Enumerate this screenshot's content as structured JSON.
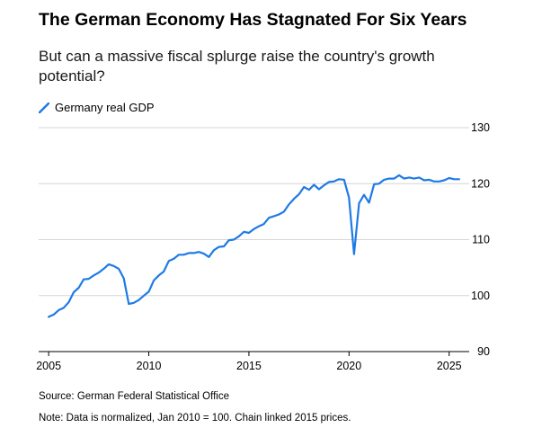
{
  "chart_data": {
    "type": "line",
    "title": "The German Economy Has Stagnated For Six Years",
    "subtitle": "But can a massive fiscal splurge raise the country's growth potential?",
    "xlabel": "",
    "ylabel": "",
    "legend": {
      "position": "top-left"
    },
    "grid": true,
    "xlim": [
      2004.5,
      2026.0
    ],
    "ylim": [
      90,
      130
    ],
    "x_ticks": [
      2005,
      2010,
      2015,
      2020,
      2025
    ],
    "y_ticks": [
      90,
      100,
      110,
      120,
      130
    ],
    "series": [
      {
        "name": "Germany real GDP",
        "color": "#1f7ae6",
        "points": [
          [
            2005.0,
            96.2
          ],
          [
            2005.25,
            96.6
          ],
          [
            2005.5,
            97.4
          ],
          [
            2005.75,
            97.8
          ],
          [
            2006.0,
            98.8
          ],
          [
            2006.25,
            100.6
          ],
          [
            2006.5,
            101.4
          ],
          [
            2006.75,
            102.9
          ],
          [
            2007.0,
            103.0
          ],
          [
            2007.25,
            103.6
          ],
          [
            2007.5,
            104.1
          ],
          [
            2007.75,
            104.8
          ],
          [
            2008.0,
            105.6
          ],
          [
            2008.25,
            105.3
          ],
          [
            2008.5,
            104.8
          ],
          [
            2008.75,
            103.1
          ],
          [
            2009.0,
            98.5
          ],
          [
            2009.25,
            98.7
          ],
          [
            2009.5,
            99.2
          ],
          [
            2009.75,
            100.0
          ],
          [
            2010.0,
            100.7
          ],
          [
            2010.25,
            102.7
          ],
          [
            2010.5,
            103.6
          ],
          [
            2010.75,
            104.3
          ],
          [
            2011.0,
            106.2
          ],
          [
            2011.25,
            106.6
          ],
          [
            2011.5,
            107.3
          ],
          [
            2011.75,
            107.3
          ],
          [
            2012.0,
            107.6
          ],
          [
            2012.25,
            107.6
          ],
          [
            2012.5,
            107.8
          ],
          [
            2012.75,
            107.5
          ],
          [
            2013.0,
            106.9
          ],
          [
            2013.25,
            108.1
          ],
          [
            2013.5,
            108.7
          ],
          [
            2013.75,
            108.8
          ],
          [
            2014.0,
            109.9
          ],
          [
            2014.25,
            110.0
          ],
          [
            2014.5,
            110.6
          ],
          [
            2014.75,
            111.4
          ],
          [
            2015.0,
            111.2
          ],
          [
            2015.25,
            111.9
          ],
          [
            2015.5,
            112.4
          ],
          [
            2015.75,
            112.8
          ],
          [
            2016.0,
            113.9
          ],
          [
            2016.25,
            114.2
          ],
          [
            2016.5,
            114.5
          ],
          [
            2016.75,
            115.0
          ],
          [
            2017.0,
            116.3
          ],
          [
            2017.25,
            117.3
          ],
          [
            2017.5,
            118.1
          ],
          [
            2017.75,
            119.4
          ],
          [
            2018.0,
            118.9
          ],
          [
            2018.25,
            119.8
          ],
          [
            2018.5,
            119.0
          ],
          [
            2018.75,
            119.7
          ],
          [
            2019.0,
            120.3
          ],
          [
            2019.25,
            120.4
          ],
          [
            2019.5,
            120.8
          ],
          [
            2019.75,
            120.7
          ],
          [
            2020.0,
            117.5
          ],
          [
            2020.25,
            107.4
          ],
          [
            2020.5,
            116.5
          ],
          [
            2020.75,
            118.0
          ],
          [
            2021.0,
            116.6
          ],
          [
            2021.25,
            119.9
          ],
          [
            2021.5,
            120.0
          ],
          [
            2021.75,
            120.7
          ],
          [
            2022.0,
            120.9
          ],
          [
            2022.25,
            120.9
          ],
          [
            2022.5,
            121.5
          ],
          [
            2022.75,
            120.9
          ],
          [
            2023.0,
            121.1
          ],
          [
            2023.25,
            120.9
          ],
          [
            2023.5,
            121.1
          ],
          [
            2023.75,
            120.6
          ],
          [
            2024.0,
            120.7
          ],
          [
            2024.25,
            120.4
          ],
          [
            2024.5,
            120.4
          ],
          [
            2024.75,
            120.6
          ],
          [
            2025.0,
            121.0
          ],
          [
            2025.25,
            120.8
          ],
          [
            2025.5,
            120.8
          ]
        ]
      }
    ]
  },
  "footer": {
    "source": "Source: German Federal Statistical Office",
    "note": "Note: Data is normalized, Jan 2010 = 100. Chain linked 2015 prices."
  }
}
